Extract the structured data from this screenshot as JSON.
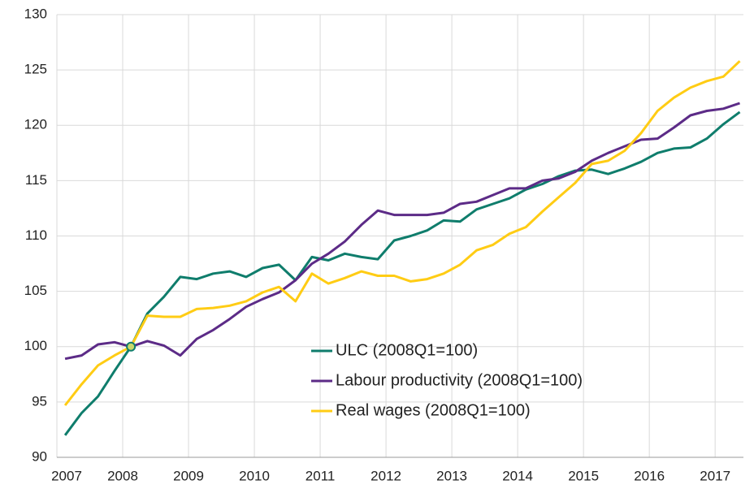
{
  "chart_data": {
    "type": "line",
    "x": [
      2007.125,
      2007.375,
      2007.625,
      2007.875,
      2008.125,
      2008.375,
      2008.625,
      2008.875,
      2009.125,
      2009.375,
      2009.625,
      2009.875,
      2010.125,
      2010.375,
      2010.625,
      2010.875,
      2011.125,
      2011.375,
      2011.625,
      2011.875,
      2012.125,
      2012.375,
      2012.625,
      2012.875,
      2013.125,
      2013.375,
      2013.625,
      2013.875,
      2014.125,
      2014.375,
      2014.625,
      2014.875,
      2015.125,
      2015.375,
      2015.625,
      2015.875,
      2016.125,
      2016.375,
      2016.625,
      2016.875,
      2017.125,
      2017.375
    ],
    "series": [
      {
        "name": "ULC (2008Q1=100)",
        "color": "#0f7d6c",
        "values": [
          92,
          94,
          95.5,
          97.8,
          100,
          103,
          104.5,
          106.3,
          106.1,
          106.6,
          106.8,
          106.3,
          107.1,
          107.4,
          106,
          108.1,
          107.8,
          108.4,
          108.1,
          107.9,
          109.6,
          110,
          110.5,
          111.4,
          111.3,
          112.4,
          112.9,
          113.4,
          114.2,
          114.7,
          115.4,
          115.9,
          116,
          115.6,
          116.1,
          116.7,
          117.5,
          117.9,
          118,
          118.8,
          120.1,
          121.2
        ]
      },
      {
        "name": "Labour productivity (2008Q1=100)",
        "color": "#5c2b87",
        "values": [
          98.9,
          99.2,
          100.2,
          100.4,
          100,
          100.5,
          100.1,
          99.2,
          100.7,
          101.5,
          102.5,
          103.6,
          104.3,
          104.9,
          106,
          107.5,
          108.4,
          109.5,
          111,
          112.3,
          111.9,
          111.9,
          111.9,
          112.1,
          112.9,
          113.1,
          113.7,
          114.3,
          114.3,
          115,
          115.2,
          115.8,
          116.8,
          117.5,
          118.1,
          118.7,
          118.8,
          119.8,
          120.9,
          121.3,
          121.5,
          122
        ]
      },
      {
        "name": "Real wages (2008Q1=100)",
        "color": "#ffcc14",
        "values": [
          94.7,
          96.6,
          98.3,
          99.2,
          100,
          102.8,
          102.7,
          102.7,
          103.4,
          103.5,
          103.7,
          104.1,
          104.9,
          105.4,
          104.1,
          106.6,
          105.7,
          106.2,
          106.8,
          106.4,
          106.4,
          105.9,
          106.1,
          106.6,
          107.4,
          108.7,
          109.2,
          110.2,
          110.8,
          112.2,
          113.5,
          114.8,
          116.5,
          116.8,
          117.7,
          119.3,
          121.3,
          122.5,
          123.4,
          124,
          124.4,
          125.8
        ]
      }
    ],
    "xlim": [
      2007,
      2017.43
    ],
    "xticks": [
      2007,
      2008,
      2009,
      2010,
      2011,
      2012,
      2013,
      2014,
      2015,
      2016,
      2017
    ],
    "ylim": [
      90,
      130
    ],
    "yticks": [
      90,
      95,
      100,
      105,
      110,
      115,
      120,
      125,
      130
    ],
    "grid": true,
    "legend": "center"
  }
}
